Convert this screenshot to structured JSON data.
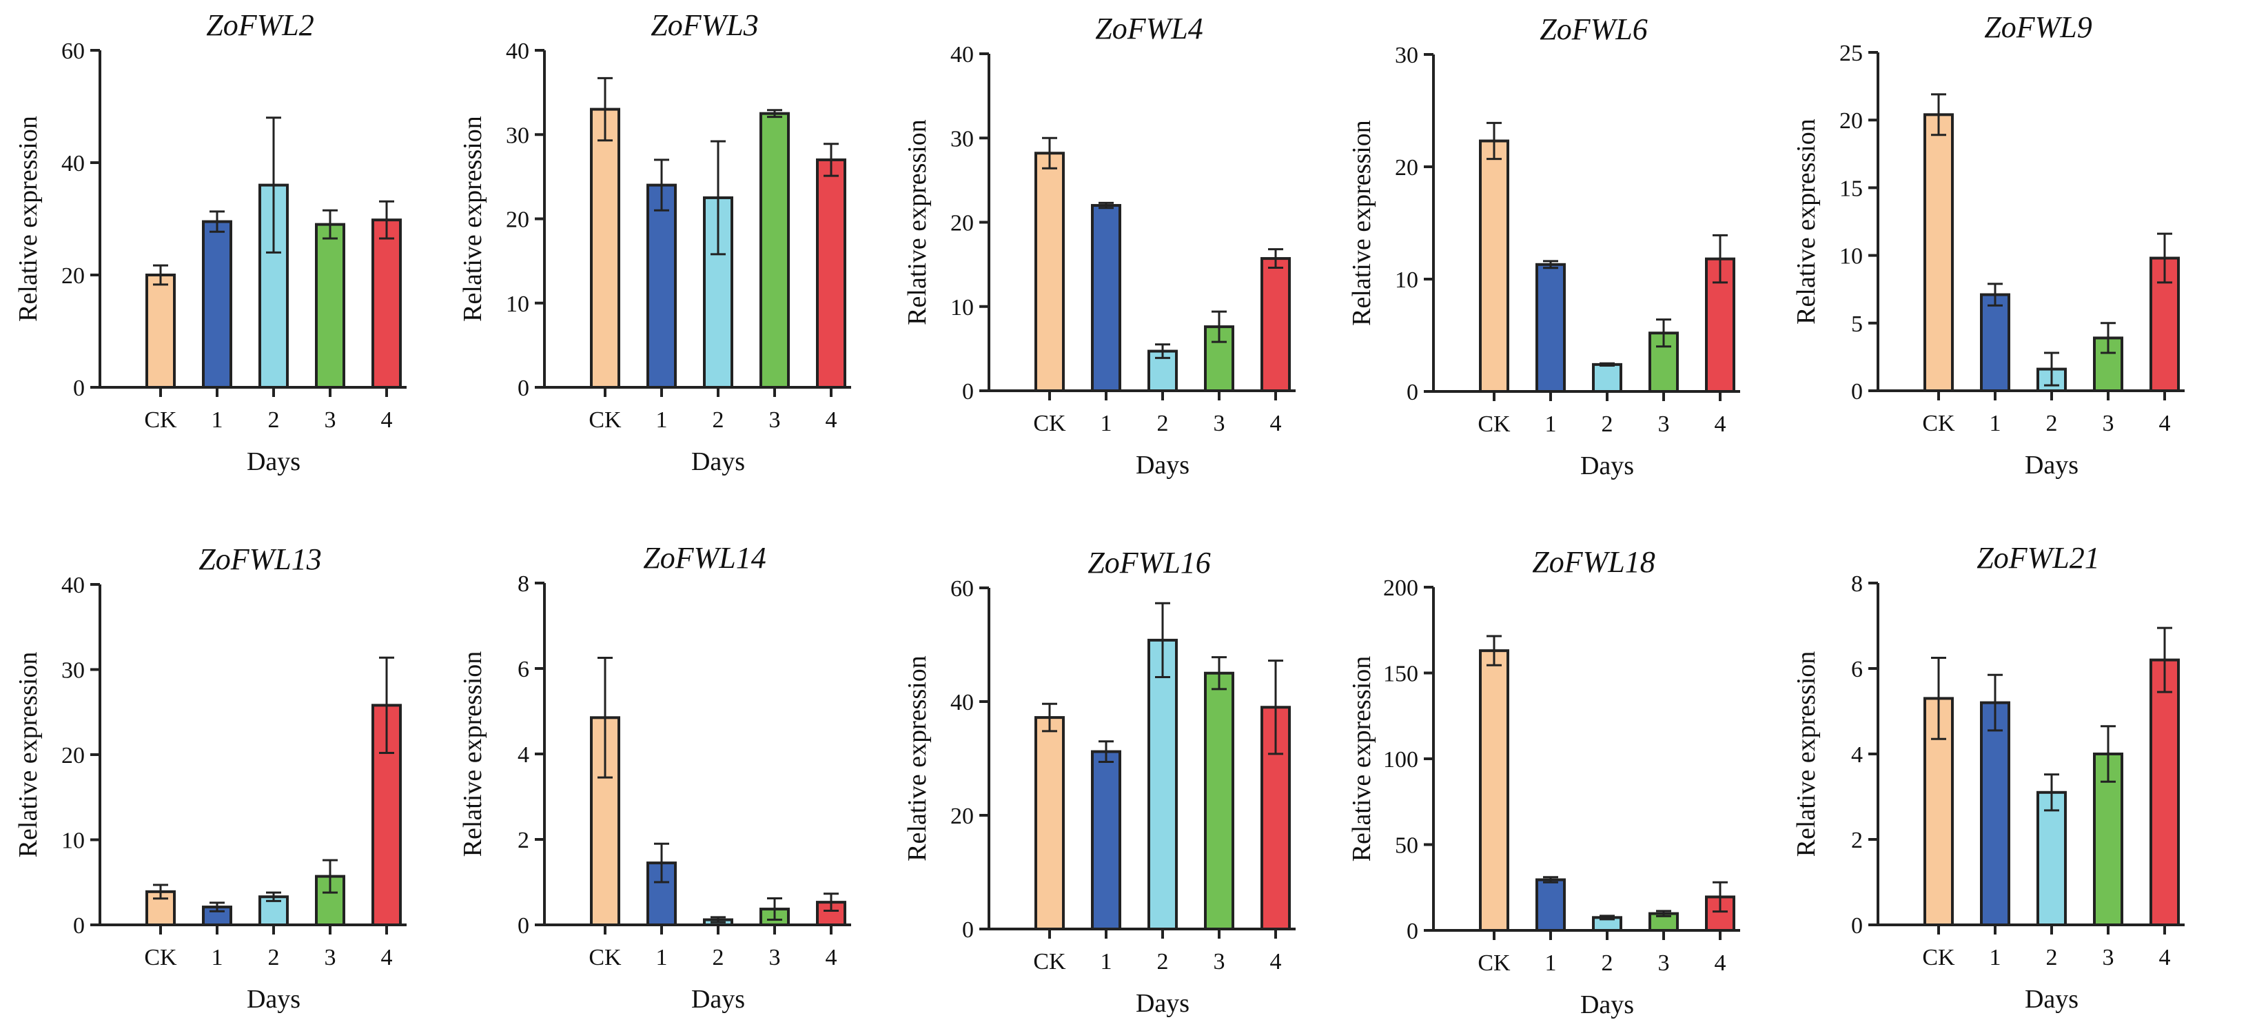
{
  "colors": {
    "CK": "#f9c99b",
    "1": "#3e66b3",
    "2": "#8fd8e6",
    "3": "#72c054",
    "4": "#e8474e",
    "stroke": "#222222"
  },
  "chart_data": [
    {
      "type": "bar",
      "title": "ZoFWL2",
      "xlabel": "Days",
      "ylabel": "Relative expression",
      "categories": [
        "CK",
        "1",
        "2",
        "3",
        "4"
      ],
      "values": [
        20,
        29.5,
        36,
        29,
        29.8
      ],
      "errors": [
        1.7,
        1.8,
        12,
        2.5,
        3.3
      ],
      "ylim": [
        0,
        60
      ],
      "yticks": [
        0,
        20,
        40,
        60
      ]
    },
    {
      "type": "bar",
      "title": "ZoFWL3",
      "xlabel": "Days",
      "ylabel": "Relative expression",
      "categories": [
        "CK",
        "1",
        "2",
        "3",
        "4"
      ],
      "values": [
        33,
        24,
        22.5,
        32.5,
        27
      ],
      "errors": [
        3.7,
        3,
        6.7,
        0.4,
        1.9
      ],
      "ylim": [
        0,
        40
      ],
      "yticks": [
        0,
        10,
        20,
        30,
        40
      ]
    },
    {
      "type": "bar",
      "title": "ZoFWL4",
      "xlabel": "Days",
      "ylabel": "Relative expression",
      "categories": [
        "CK",
        "1",
        "2",
        "3",
        "4"
      ],
      "values": [
        28.2,
        22,
        4.7,
        7.6,
        15.7
      ],
      "errors": [
        1.8,
        0.3,
        0.8,
        1.8,
        1.1
      ],
      "ylim": [
        0,
        40
      ],
      "yticks": [
        0,
        10,
        20,
        30,
        40
      ]
    },
    {
      "type": "bar",
      "title": "ZoFWL6",
      "xlabel": "Days",
      "ylabel": "Relative expression",
      "categories": [
        "CK",
        "1",
        "2",
        "3",
        "4"
      ],
      "values": [
        22.3,
        11.3,
        2.4,
        5.2,
        11.8
      ],
      "errors": [
        1.6,
        0.3,
        0.1,
        1.2,
        2.1
      ],
      "ylim": [
        0,
        30
      ],
      "yticks": [
        0,
        10,
        20,
        30
      ]
    },
    {
      "type": "bar",
      "title": "ZoFWL9",
      "xlabel": "Days",
      "ylabel": "Relative expression",
      "categories": [
        "CK",
        "1",
        "2",
        "3",
        "4"
      ],
      "values": [
        20.4,
        7.1,
        1.6,
        3.9,
        9.8
      ],
      "errors": [
        1.5,
        0.8,
        1.2,
        1.1,
        1.8
      ],
      "ylim": [
        0,
        25
      ],
      "yticks": [
        0,
        5,
        10,
        15,
        20,
        25
      ]
    },
    {
      "type": "bar",
      "title": "ZoFWL13",
      "xlabel": "Days",
      "ylabel": "Relative expression",
      "categories": [
        "CK",
        "1",
        "2",
        "3",
        "4"
      ],
      "values": [
        3.9,
        2.1,
        3.3,
        5.7,
        25.8
      ],
      "errors": [
        0.8,
        0.5,
        0.5,
        1.9,
        5.6
      ],
      "ylim": [
        0,
        40
      ],
      "yticks": [
        0,
        10,
        20,
        30,
        40
      ]
    },
    {
      "type": "bar",
      "title": "ZoFWL14",
      "xlabel": "Days",
      "ylabel": "Relative expression",
      "categories": [
        "CK",
        "1",
        "2",
        "3",
        "4"
      ],
      "values": [
        4.85,
        1.45,
        0.12,
        0.37,
        0.53
      ],
      "errors": [
        1.4,
        0.45,
        0.06,
        0.25,
        0.2
      ],
      "ylim": [
        0,
        8
      ],
      "yticks": [
        0,
        2,
        4,
        6,
        8
      ]
    },
    {
      "type": "bar",
      "title": "ZoFWL16",
      "xlabel": "Days",
      "ylabel": "Relative expression",
      "categories": [
        "CK",
        "1",
        "2",
        "3",
        "4"
      ],
      "values": [
        37.2,
        31.2,
        50.8,
        45,
        39
      ],
      "errors": [
        2.4,
        1.8,
        6.5,
        2.8,
        8.2
      ],
      "ylim": [
        0,
        60
      ],
      "yticks": [
        0,
        20,
        40,
        60
      ]
    },
    {
      "type": "bar",
      "title": "ZoFWL18",
      "xlabel": "Days",
      "ylabel": "Relative expression",
      "categories": [
        "CK",
        "1",
        "2",
        "3",
        "4"
      ],
      "values": [
        163,
        29.5,
        7.5,
        9.8,
        19.5
      ],
      "errors": [
        8.5,
        1.5,
        1,
        1.5,
        8.5
      ],
      "ylim": [
        0,
        200
      ],
      "yticks": [
        0,
        50,
        100,
        150,
        200
      ]
    },
    {
      "type": "bar",
      "title": "ZoFWL21",
      "xlabel": "Days",
      "ylabel": "Relative expression",
      "categories": [
        "CK",
        "1",
        "2",
        "3",
        "4"
      ],
      "values": [
        5.3,
        5.2,
        3.1,
        4,
        6.2
      ],
      "errors": [
        0.95,
        0.65,
        0.42,
        0.65,
        0.75
      ],
      "ylim": [
        0,
        8
      ],
      "yticks": [
        0,
        2,
        4,
        6,
        8
      ]
    }
  ]
}
